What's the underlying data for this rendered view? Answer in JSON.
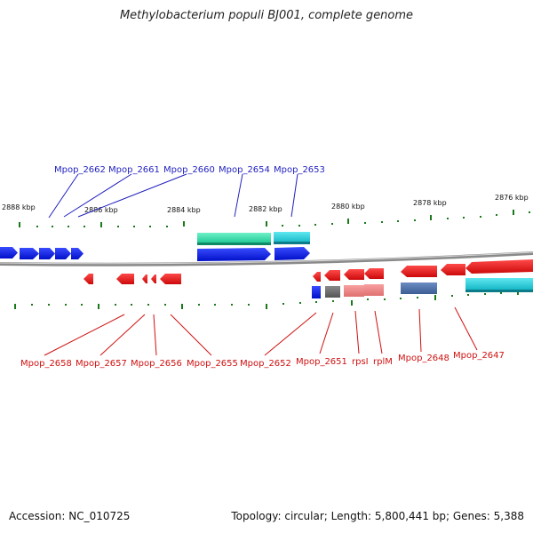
{
  "title": "Methylobacterium populi BJ001, complete genome",
  "accession": "Accession: NC_010725",
  "topology": "Topology: circular; Length: 5,800,441 bp; Genes: 5,388",
  "kbp_labels": [
    "2888 kbp",
    "2886 kbp",
    "2884 kbp",
    "2882 kbp",
    "2880 kbp",
    "2878 kbp",
    "2876 kbp"
  ],
  "top_gene_labels": [
    "Mpop_2662",
    "Mpop_2661",
    "Mpop_2660",
    "Mpop_2654",
    "Mpop_2653"
  ],
  "bottom_gene_labels": [
    "Mpop_2658",
    "Mpop_2657",
    "Mpop_2656",
    "Mpop_2655",
    "Mpop_2652",
    "Mpop_2651",
    "rpsI",
    "rplM",
    "Mpop_2648",
    "Mpop_2647"
  ],
  "colors": {
    "plus_strand_gene": "#0018e0",
    "minus_strand_gene": "#e8101a",
    "rrna_like": "#22d4a6",
    "cyan_feature": "#19c8d8",
    "backbone": "#8a8a8a",
    "tick": "#1a7a1a",
    "top_label": "#1f1fbf",
    "bottom_label": "#d01010"
  }
}
